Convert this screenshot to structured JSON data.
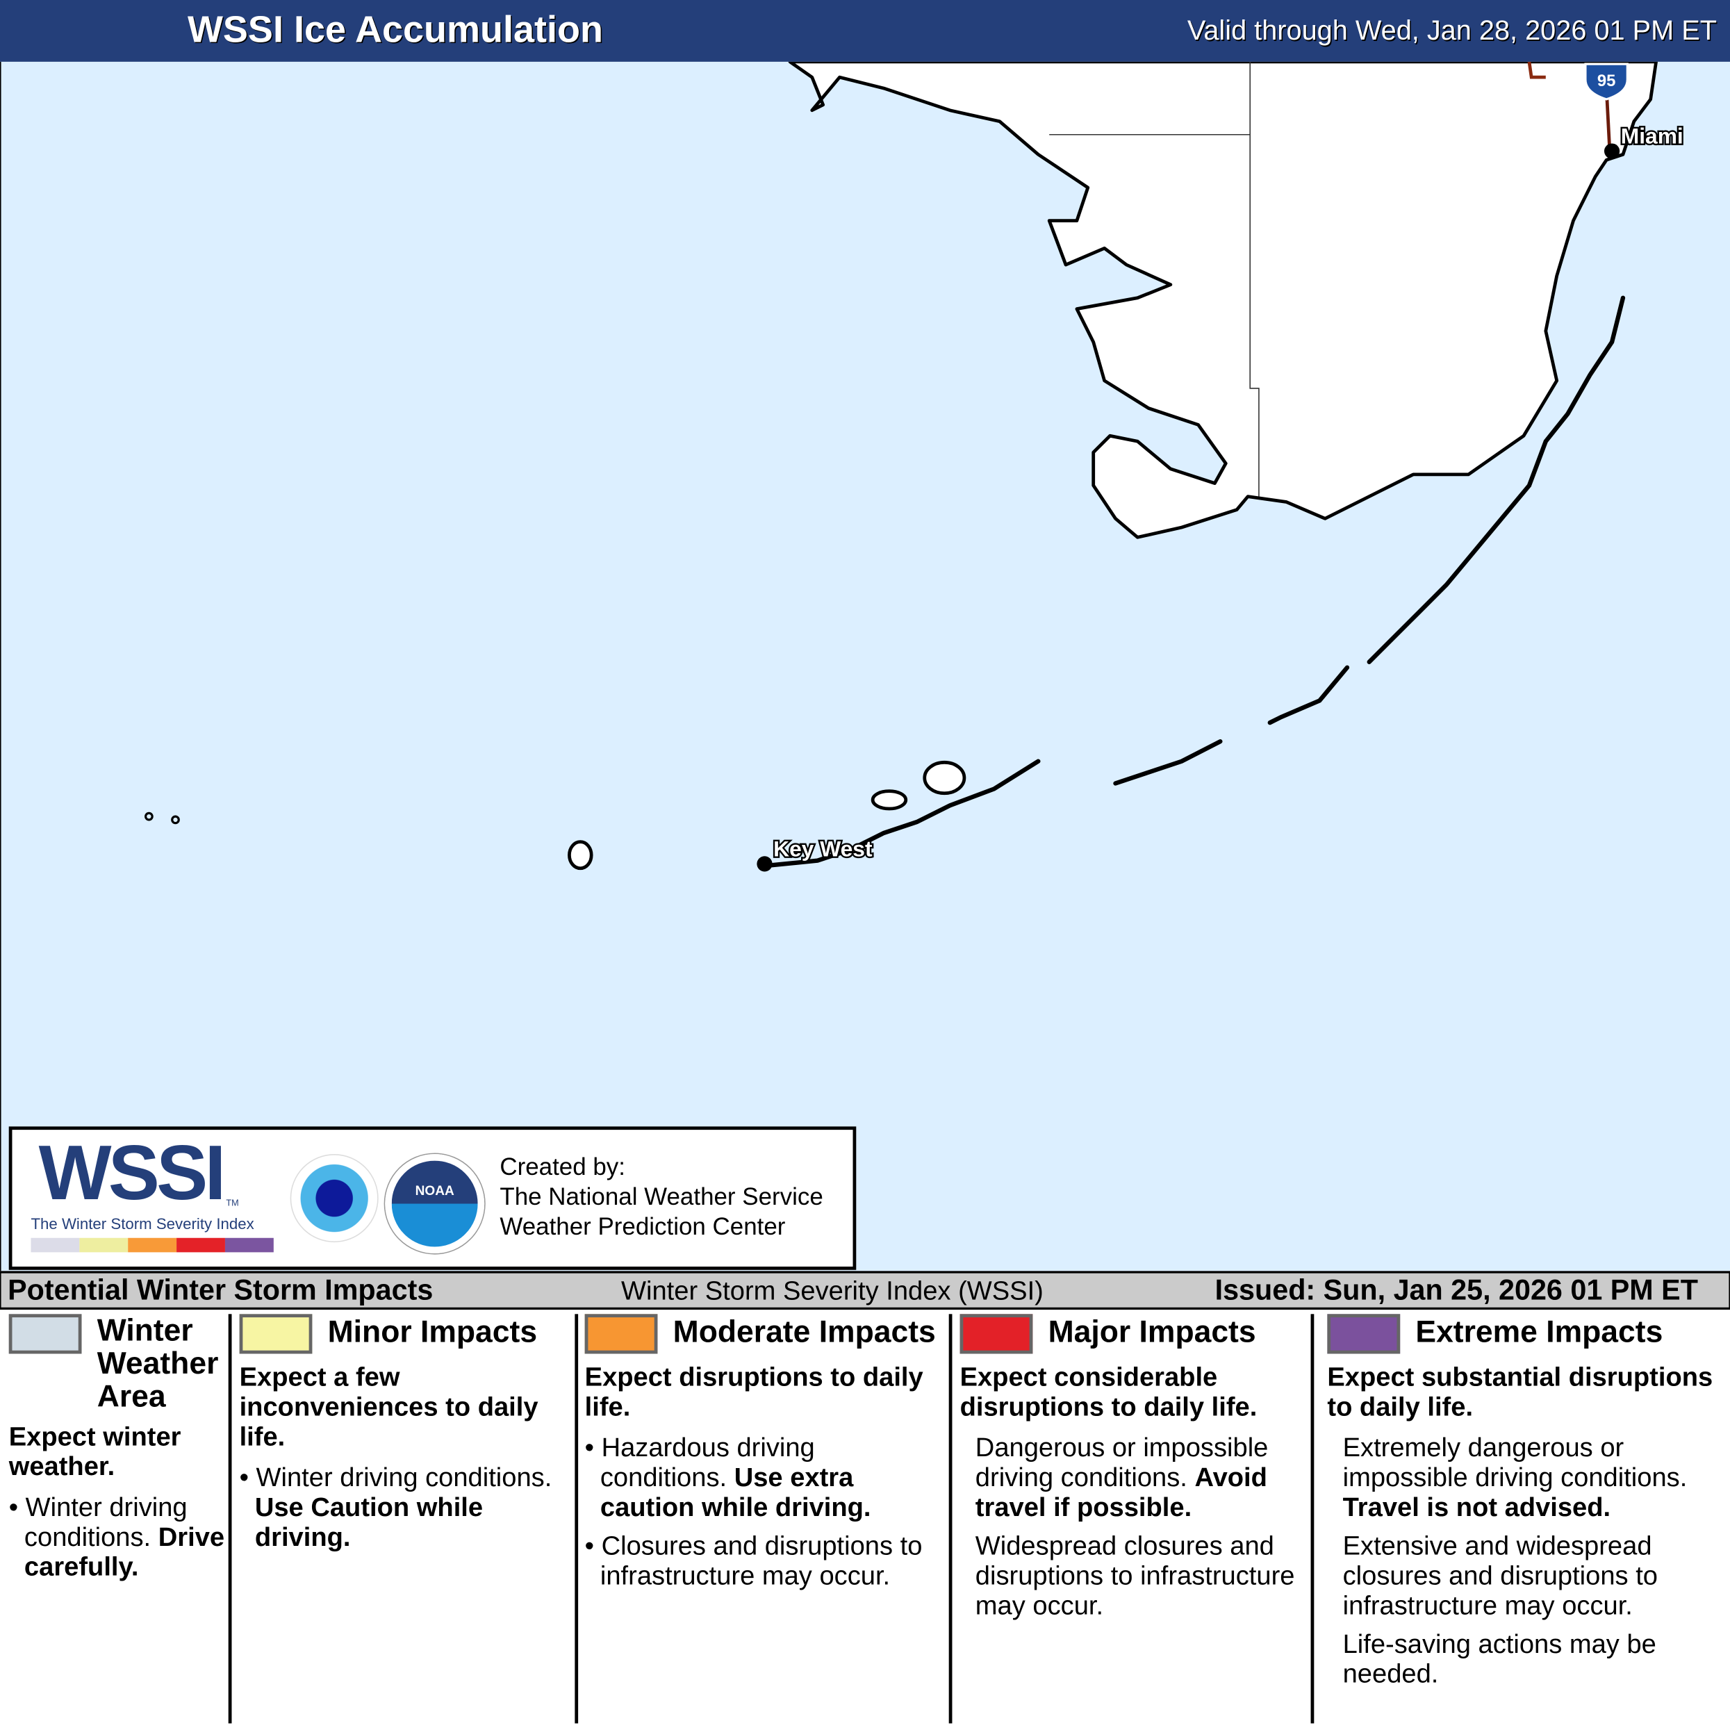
{
  "header": {
    "title": "WSSI Ice Accumulation",
    "valid": "Valid through Wed, Jan 28, 2026 01 PM ET"
  },
  "map": {
    "cities": [
      "Miami",
      "Key West"
    ],
    "highway": "95",
    "colors": {
      "water": "#dcefff",
      "land": "#ffffff"
    }
  },
  "logo": {
    "wssi": "WSSI",
    "tm": "TM",
    "tagline": "The Winter Storm Severity Index",
    "nws": "NATIONAL WEATHER SERVICE",
    "noaa": "NOAA",
    "created": [
      "Created by:",
      "The National Weather Service",
      "Weather Prediction Center"
    ],
    "bar_colors": [
      "#dcdce8",
      "#eeeea0",
      "#f89a38",
      "#e42228",
      "#7b55a0"
    ]
  },
  "bar": {
    "left": "Potential Winter Storm Impacts",
    "center": "Winter Storm Severity Index (WSSI)",
    "right": "Issued: Sun, Jan 25, 2026 01 PM ET"
  },
  "legend": [
    {
      "title": "Winter Weather Area",
      "color": "#d2dde6",
      "lead": "Expect winter weather.",
      "items": [
        {
          "text": "Winter driving conditions.",
          "bold": "Drive carefully."
        }
      ]
    },
    {
      "title": "Minor Impacts",
      "color": "#f7f5a3",
      "lead": "Expect a few inconveniences to daily life.",
      "items": [
        {
          "text": "Winter driving conditions.",
          "bold": "Use Caution while driving."
        }
      ]
    },
    {
      "title": "Moderate Impacts",
      "color": "#f79632",
      "lead": "Expect disruptions to daily life.",
      "items": [
        {
          "text": "Hazardous driving conditions.",
          "bold": "Use extra caution while driving."
        },
        {
          "text": "Closures and disruptions to infrastructure may occur.",
          "bold": ""
        }
      ]
    },
    {
      "title": "Major Impacts",
      "color": "#e32128",
      "lead": "Expect considerable disruptions to daily life.",
      "items": [
        {
          "text": "Dangerous or impossible driving conditions.",
          "bold": "Avoid travel if possible."
        },
        {
          "text": "Widespread closures and disruptions to infrastructure may occur.",
          "bold": ""
        }
      ]
    },
    {
      "title": "Extreme Impacts",
      "color": "#7b519d",
      "lead": "Expect substantial disruptions to daily life.",
      "items": [
        {
          "text": "Extremely dangerous or impossible driving conditions.",
          "bold": "Travel is not advised."
        },
        {
          "text": "Extensive and widespread closures and disruptions to infrastructure may occur.",
          "bold": ""
        },
        {
          "text": "Life-saving actions may be needed.",
          "bold": ""
        }
      ]
    }
  ]
}
